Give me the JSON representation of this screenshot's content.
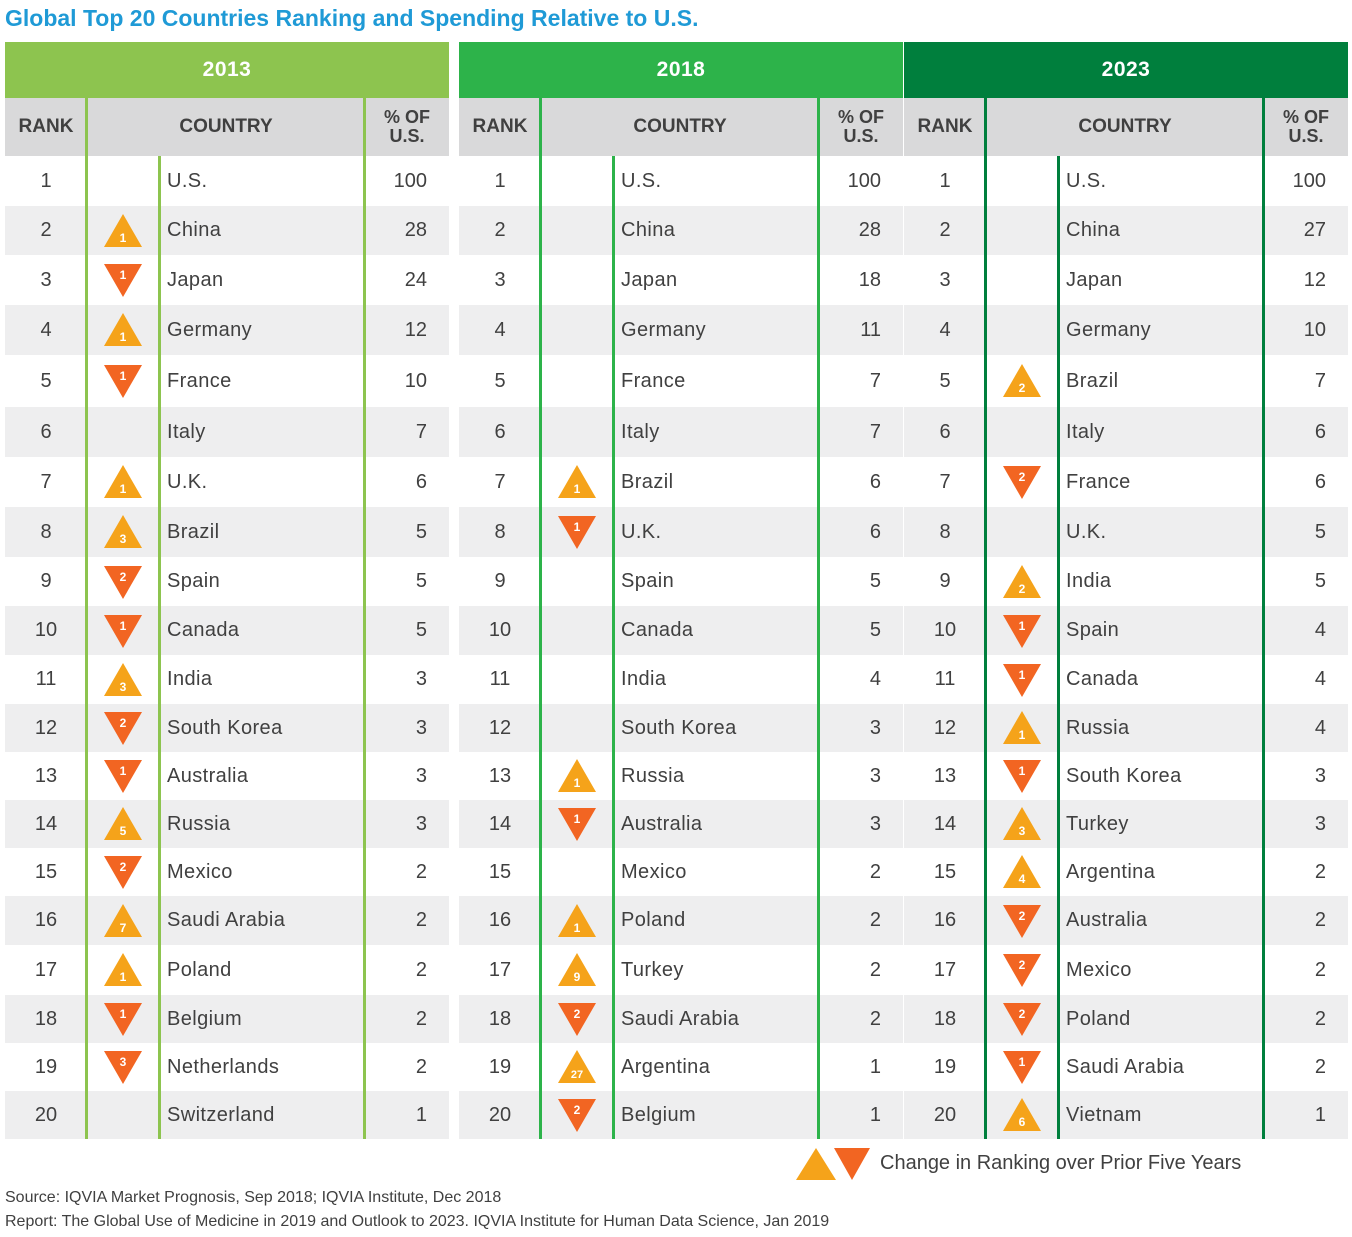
{
  "title": "Global Top 20 Countries Ranking and Spending Relative to U.S.",
  "colors": {
    "up": "#f5a31a",
    "down": "#f26522",
    "panel_2013": "#8dc44f",
    "panel_2018": "#2db34a",
    "panel_2023": "#007f3d",
    "title": "#1f9ad6"
  },
  "headers": {
    "rank": "RANK",
    "country": "COUNTRY",
    "pct_line1": "% OF",
    "pct_line2": "U.S."
  },
  "chart_data": {
    "type": "table",
    "panels": [
      {
        "year": "2013",
        "rows": [
          {
            "rank": "1",
            "country": "U.S.",
            "pct": "100",
            "dir": "",
            "change": ""
          },
          {
            "rank": "2",
            "country": "China",
            "pct": "28",
            "dir": "up",
            "change": "1"
          },
          {
            "rank": "3",
            "country": "Japan",
            "pct": "24",
            "dir": "down",
            "change": "1"
          },
          {
            "rank": "4",
            "country": "Germany",
            "pct": "12",
            "dir": "up",
            "change": "1"
          },
          {
            "rank": "5",
            "country": "France",
            "pct": "10",
            "dir": "down",
            "change": "1"
          },
          {
            "rank": "6",
            "country": "Italy",
            "pct": "7",
            "dir": "",
            "change": ""
          },
          {
            "rank": "7",
            "country": "U.K.",
            "pct": "6",
            "dir": "up",
            "change": "1"
          },
          {
            "rank": "8",
            "country": "Brazil",
            "pct": "5",
            "dir": "up",
            "change": "3"
          },
          {
            "rank": "9",
            "country": "Spain",
            "pct": "5",
            "dir": "down",
            "change": "2"
          },
          {
            "rank": "10",
            "country": "Canada",
            "pct": "5",
            "dir": "down",
            "change": "1"
          },
          {
            "rank": "11",
            "country": "India",
            "pct": "3",
            "dir": "up",
            "change": "3"
          },
          {
            "rank": "12",
            "country": "South Korea",
            "pct": "3",
            "dir": "down",
            "change": "2"
          },
          {
            "rank": "13",
            "country": "Australia",
            "pct": "3",
            "dir": "down",
            "change": "1"
          },
          {
            "rank": "14",
            "country": "Russia",
            "pct": "3",
            "dir": "up",
            "change": "5"
          },
          {
            "rank": "15",
            "country": "Mexico",
            "pct": "2",
            "dir": "down",
            "change": "2"
          },
          {
            "rank": "16",
            "country": "Saudi Arabia",
            "pct": "2",
            "dir": "up",
            "change": "7"
          },
          {
            "rank": "17",
            "country": "Poland",
            "pct": "2",
            "dir": "up",
            "change": "1"
          },
          {
            "rank": "18",
            "country": "Belgium",
            "pct": "2",
            "dir": "down",
            "change": "1"
          },
          {
            "rank": "19",
            "country": "Netherlands",
            "pct": "2",
            "dir": "down",
            "change": "3"
          },
          {
            "rank": "20",
            "country": "Switzerland",
            "pct": "1",
            "dir": "",
            "change": ""
          }
        ]
      },
      {
        "year": "2018",
        "rows": [
          {
            "rank": "1",
            "country": "U.S.",
            "pct": "100",
            "dir": "",
            "change": ""
          },
          {
            "rank": "2",
            "country": "China",
            "pct": "28",
            "dir": "",
            "change": ""
          },
          {
            "rank": "3",
            "country": "Japan",
            "pct": "18",
            "dir": "",
            "change": ""
          },
          {
            "rank": "4",
            "country": "Germany",
            "pct": "11",
            "dir": "",
            "change": ""
          },
          {
            "rank": "5",
            "country": "France",
            "pct": "7",
            "dir": "",
            "change": ""
          },
          {
            "rank": "6",
            "country": "Italy",
            "pct": "7",
            "dir": "",
            "change": ""
          },
          {
            "rank": "7",
            "country": "Brazil",
            "pct": "6",
            "dir": "up",
            "change": "1"
          },
          {
            "rank": "8",
            "country": "U.K.",
            "pct": "6",
            "dir": "down",
            "change": "1"
          },
          {
            "rank": "9",
            "country": "Spain",
            "pct": "5",
            "dir": "",
            "change": ""
          },
          {
            "rank": "10",
            "country": "Canada",
            "pct": "5",
            "dir": "",
            "change": ""
          },
          {
            "rank": "11",
            "country": "India",
            "pct": "4",
            "dir": "",
            "change": ""
          },
          {
            "rank": "12",
            "country": "South Korea",
            "pct": "3",
            "dir": "",
            "change": ""
          },
          {
            "rank": "13",
            "country": "Russia",
            "pct": "3",
            "dir": "up",
            "change": "1"
          },
          {
            "rank": "14",
            "country": "Australia",
            "pct": "3",
            "dir": "down",
            "change": "1"
          },
          {
            "rank": "15",
            "country": "Mexico",
            "pct": "2",
            "dir": "",
            "change": ""
          },
          {
            "rank": "16",
            "country": "Poland",
            "pct": "2",
            "dir": "up",
            "change": "1"
          },
          {
            "rank": "17",
            "country": "Turkey",
            "pct": "2",
            "dir": "up",
            "change": "9"
          },
          {
            "rank": "18",
            "country": "Saudi Arabia",
            "pct": "2",
            "dir": "down",
            "change": "2"
          },
          {
            "rank": "19",
            "country": "Argentina",
            "pct": "1",
            "dir": "up",
            "change": "27"
          },
          {
            "rank": "20",
            "country": "Belgium",
            "pct": "1",
            "dir": "down",
            "change": "2"
          }
        ]
      },
      {
        "year": "2023",
        "rows": [
          {
            "rank": "1",
            "country": "U.S.",
            "pct": "100",
            "dir": "",
            "change": ""
          },
          {
            "rank": "2",
            "country": "China",
            "pct": "27",
            "dir": "",
            "change": ""
          },
          {
            "rank": "3",
            "country": "Japan",
            "pct": "12",
            "dir": "",
            "change": ""
          },
          {
            "rank": "4",
            "country": "Germany",
            "pct": "10",
            "dir": "",
            "change": ""
          },
          {
            "rank": "5",
            "country": "Brazil",
            "pct": "7",
            "dir": "up",
            "change": "2"
          },
          {
            "rank": "6",
            "country": "Italy",
            "pct": "6",
            "dir": "",
            "change": ""
          },
          {
            "rank": "7",
            "country": "France",
            "pct": "6",
            "dir": "down",
            "change": "2"
          },
          {
            "rank": "8",
            "country": "U.K.",
            "pct": "5",
            "dir": "",
            "change": ""
          },
          {
            "rank": "9",
            "country": "India",
            "pct": "5",
            "dir": "up",
            "change": "2"
          },
          {
            "rank": "10",
            "country": "Spain",
            "pct": "4",
            "dir": "down",
            "change": "1"
          },
          {
            "rank": "11",
            "country": "Canada",
            "pct": "4",
            "dir": "down",
            "change": "1"
          },
          {
            "rank": "12",
            "country": "Russia",
            "pct": "4",
            "dir": "up",
            "change": "1"
          },
          {
            "rank": "13",
            "country": "South Korea",
            "pct": "3",
            "dir": "down",
            "change": "1"
          },
          {
            "rank": "14",
            "country": "Turkey",
            "pct": "3",
            "dir": "up",
            "change": "3"
          },
          {
            "rank": "15",
            "country": "Argentina",
            "pct": "2",
            "dir": "up",
            "change": "4"
          },
          {
            "rank": "16",
            "country": "Australia",
            "pct": "2",
            "dir": "down",
            "change": "2"
          },
          {
            "rank": "17",
            "country": "Mexico",
            "pct": "2",
            "dir": "down",
            "change": "2"
          },
          {
            "rank": "18",
            "country": "Poland",
            "pct": "2",
            "dir": "down",
            "change": "2"
          },
          {
            "rank": "19",
            "country": "Saudi Arabia",
            "pct": "2",
            "dir": "down",
            "change": "1"
          },
          {
            "rank": "20",
            "country": "Vietnam",
            "pct": "1",
            "dir": "up",
            "change": "6"
          }
        ]
      }
    ]
  },
  "legend": {
    "label": "Change in Ranking over Prior Five Years"
  },
  "footer": {
    "source": "Source: IQVIA Market Prognosis, Sep 2018; IQVIA Institute, Dec 2018",
    "report": "Report: The Global Use of Medicine in 2019 and Outlook to 2023. IQVIA Institute for Human Data Science, Jan 2019"
  }
}
